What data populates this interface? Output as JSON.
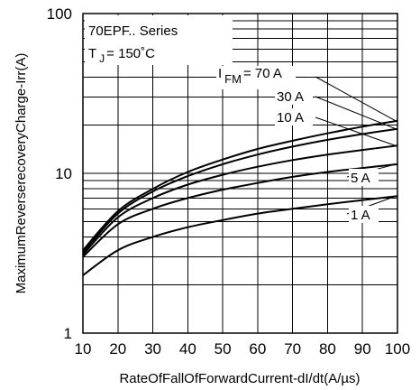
{
  "chart_data": {
    "type": "line",
    "xlabel": "RateOfFallOfForwardCurrent-dI/dt(A/µs)",
    "ylabel": "MaximumReverserecoveryCharge-Irr(A)",
    "xlim": [
      10,
      100
    ],
    "ylim": [
      1,
      100
    ],
    "y_scale": "log",
    "grid": true,
    "x_ticks": [
      "10",
      "20",
      "30",
      "40",
      "50",
      "60",
      "70",
      "80",
      "90",
      "100"
    ],
    "y_ticks": [
      "1",
      "10",
      "100"
    ],
    "annotations": {
      "series_name": "70EPF.. Series",
      "tj_t": "T",
      "tj_sub": "J",
      "tj_rest": "= 150˚C",
      "ifm_i": "I",
      "ifm_sub": "FM",
      "ifm_rest": "= 70 A"
    },
    "x": [
      10,
      20,
      30,
      40,
      50,
      60,
      70,
      80,
      90,
      100
    ],
    "series": [
      {
        "name": "70 A",
        "values": [
          3.3,
          5.8,
          8.0,
          10.2,
          12.2,
          14.2,
          16.0,
          17.8,
          19.6,
          21.3
        ]
      },
      {
        "name": "30 A",
        "values": [
          3.2,
          5.6,
          7.7,
          9.6,
          11.4,
          13.1,
          14.7,
          16.2,
          17.6,
          19.0
        ]
      },
      {
        "name": "10 A",
        "values": [
          3.1,
          5.3,
          7.0,
          8.5,
          9.8,
          11.0,
          12.1,
          13.1,
          14.0,
          14.9
        ]
      },
      {
        "name": "5 A",
        "values": [
          3.0,
          4.8,
          6.0,
          7.0,
          7.9,
          8.7,
          9.5,
          10.2,
          10.8,
          11.4
        ]
      },
      {
        "name": "1 A",
        "values": [
          2.3,
          3.3,
          4.0,
          4.6,
          5.1,
          5.6,
          6.0,
          6.4,
          6.8,
          7.2
        ]
      }
    ]
  }
}
